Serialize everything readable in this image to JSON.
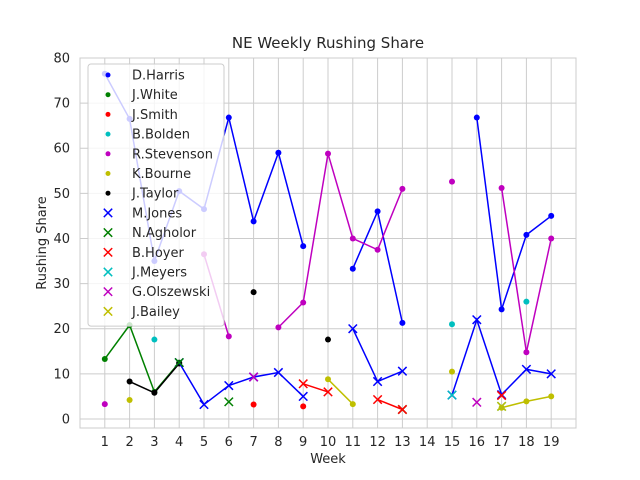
{
  "chart_data": {
    "type": "line",
    "title": "NE Weekly Rushing Share",
    "xlabel": "Week",
    "ylabel": "Rushing Share",
    "xlim": [
      0,
      20
    ],
    "ylim": [
      -2,
      80
    ],
    "xticks": [
      1,
      2,
      3,
      4,
      5,
      6,
      7,
      8,
      9,
      10,
      11,
      12,
      13,
      14,
      15,
      16,
      17,
      18,
      19
    ],
    "yticks": [
      0,
      10,
      20,
      30,
      40,
      50,
      60,
      70,
      80
    ],
    "grid": true,
    "legend_position": "top-left",
    "series": [
      {
        "name": "D.Harris",
        "marker": "dot",
        "color": "#0000ff",
        "x": [
          1,
          2,
          3,
          4,
          5,
          6,
          7,
          8,
          9,
          11,
          12,
          13,
          16,
          17,
          18,
          19
        ],
        "y": [
          76.5,
          66.5,
          35,
          50.5,
          46.5,
          66.8,
          43.8,
          59,
          38.3,
          33.3,
          46,
          21.3,
          66.8,
          24.3,
          40.8,
          45
        ]
      },
      {
        "name": "J.White",
        "marker": "dot",
        "color": "#008000",
        "x": [
          1,
          2,
          3,
          4
        ],
        "y": [
          13.3,
          20.8,
          6,
          12.5
        ]
      },
      {
        "name": "J.Smith",
        "marker": "dot",
        "color": "#ff0000",
        "x": [
          7,
          9
        ],
        "y": [
          3.2,
          2.8
        ]
      },
      {
        "name": "B.Bolden",
        "marker": "dot",
        "color": "#00bfbf",
        "x": [
          3,
          15,
          18
        ],
        "y": [
          17.6,
          21,
          26
        ]
      },
      {
        "name": "R.Stevenson",
        "marker": "dot",
        "color": "#bf00bf",
        "x": [
          1,
          5,
          6,
          8,
          9,
          10,
          11,
          12,
          13,
          15,
          17,
          18,
          19
        ],
        "y": [
          3.3,
          36.5,
          18.3,
          20.3,
          25.8,
          58.8,
          40,
          37.5,
          51,
          52.6,
          51.2,
          14.8,
          40
        ]
      },
      {
        "name": "K.Bourne",
        "marker": "dot",
        "color": "#bfbf00",
        "x": [
          2,
          10,
          11,
          15,
          17,
          18,
          19
        ],
        "y": [
          4.2,
          8.8,
          3.3,
          10.5,
          2.5,
          3.9,
          5
        ]
      },
      {
        "name": "J.Taylor",
        "marker": "dot",
        "color": "#000000",
        "x": [
          2,
          3,
          4,
          7,
          10
        ],
        "y": [
          8.3,
          5.8,
          12.3,
          28.1,
          17.6
        ]
      },
      {
        "name": "M.Jones",
        "marker": "x",
        "color": "#0000ff",
        "x": [
          4,
          5,
          6,
          7,
          8,
          9,
          11,
          12,
          13,
          15,
          16,
          17,
          18,
          19
        ],
        "y": [
          12.5,
          3.2,
          7.4,
          9.3,
          10.3,
          5,
          20,
          8.3,
          10.6,
          5.3,
          22,
          5.4,
          11,
          10
        ]
      },
      {
        "name": "N.Agholor",
        "marker": "x",
        "color": "#008000",
        "x": [
          4,
          6,
          13
        ],
        "y": [
          12.5,
          3.8,
          2.1
        ]
      },
      {
        "name": "B.Hoyer",
        "marker": "x",
        "color": "#ff0000",
        "x": [
          9,
          10,
          12,
          13,
          17
        ],
        "y": [
          7.8,
          6,
          4.3,
          2.1,
          5.2
        ]
      },
      {
        "name": "J.Meyers",
        "marker": "x",
        "color": "#00bfbf",
        "x": [
          15,
          17
        ],
        "y": [
          5.3,
          2.8
        ]
      },
      {
        "name": "G.Olszewski",
        "marker": "x",
        "color": "#bf00bf",
        "x": [
          7,
          16
        ],
        "y": [
          9.3,
          3.7
        ]
      },
      {
        "name": "J.Bailey",
        "marker": "x",
        "color": "#bfbf00",
        "x": [
          17
        ],
        "y": [
          2.8
        ]
      }
    ]
  }
}
